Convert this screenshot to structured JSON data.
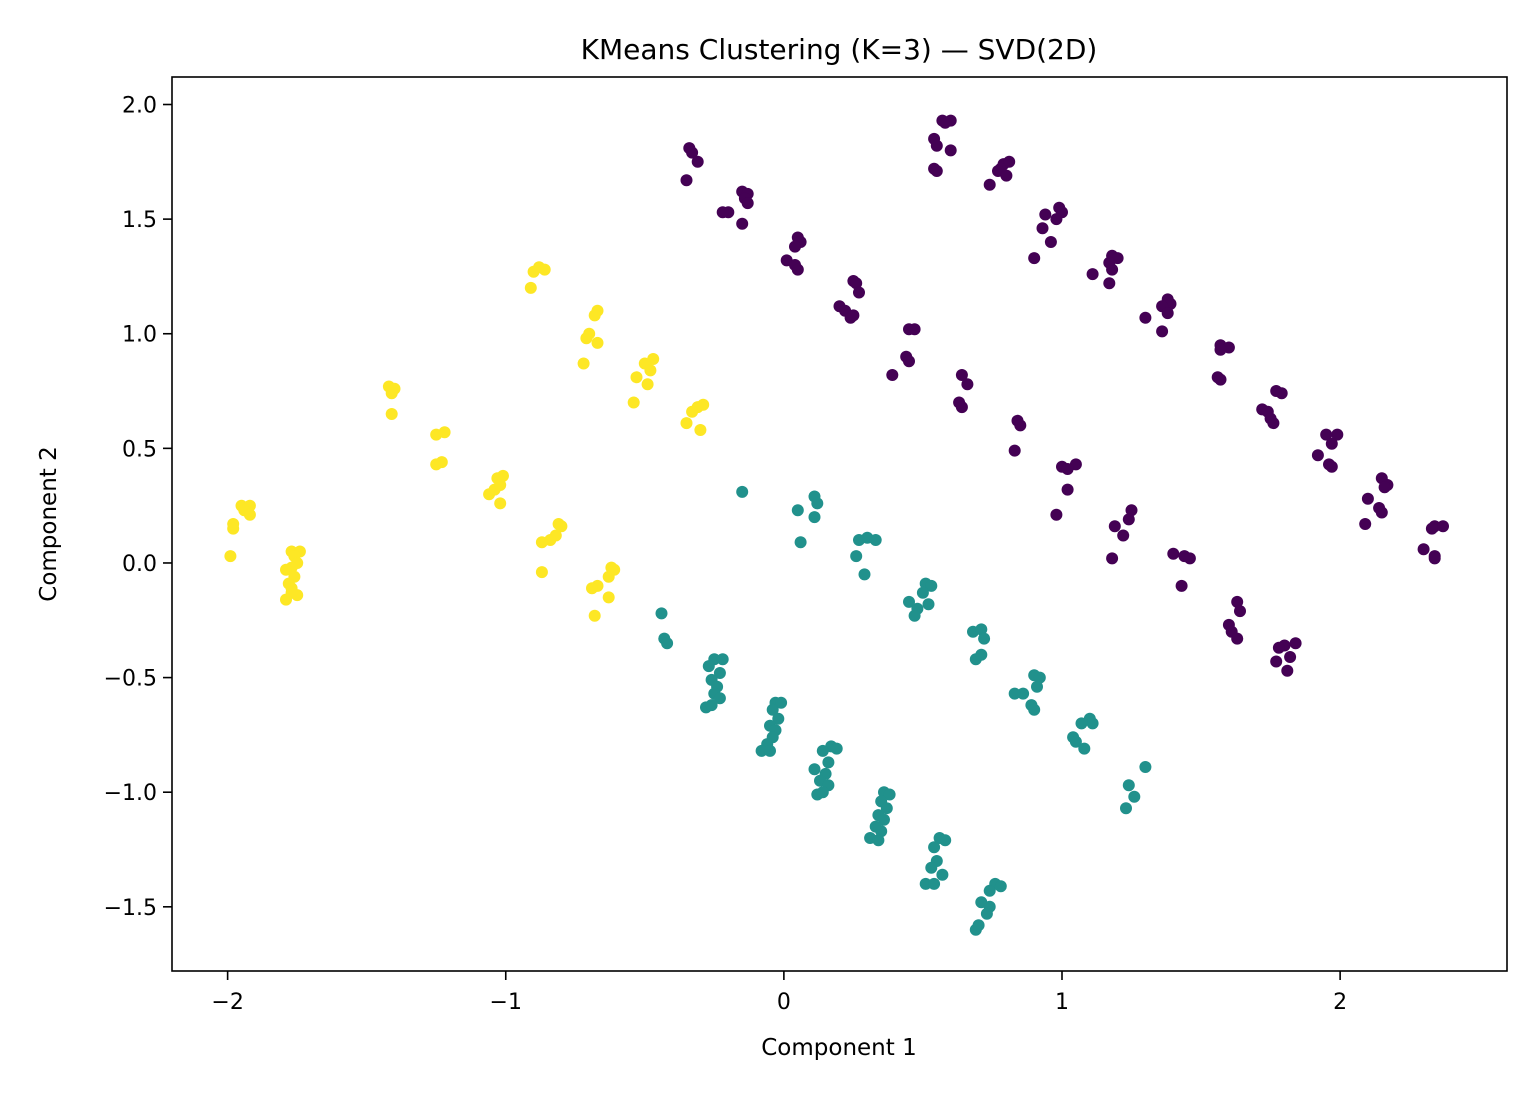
{
  "chart_data": {
    "type": "scatter",
    "title": "KMeans Clustering (K=3) — SVD(2D)",
    "xlabel": "Component 1",
    "ylabel": "Component 2",
    "xlim": [
      -2.2,
      2.6
    ],
    "ylim": [
      -1.78,
      2.12
    ],
    "xticks": [
      -2,
      -1,
      0,
      1,
      2
    ],
    "xtick_labels": [
      "−2",
      "−1",
      "0",
      "1",
      "2"
    ],
    "yticks": [
      -1.5,
      -1.0,
      -0.5,
      0.0,
      0.5,
      1.0,
      1.5,
      2.0
    ],
    "ytick_labels": [
      "−1.5",
      "−1.0",
      "−0.5",
      "0.0",
      "0.5",
      "1.0",
      "1.5",
      "2.0"
    ],
    "grid": false,
    "legend": "none",
    "colors": {
      "cluster_0": "#440154",
      "cluster_1": "#21918c",
      "cluster_2": "#fde725"
    },
    "series": [
      {
        "cluster": 0,
        "color": "#440154",
        "points": [
          [
            -0.34,
            1.81
          ],
          [
            -0.33,
            1.79
          ],
          [
            -0.31,
            1.75
          ],
          [
            -0.35,
            1.67
          ],
          [
            -0.15,
            1.62
          ],
          [
            -0.13,
            1.61
          ],
          [
            -0.14,
            1.59
          ],
          [
            -0.2,
            1.53
          ],
          [
            -0.22,
            1.53
          ],
          [
            -0.13,
            1.57
          ],
          [
            -0.15,
            1.48
          ],
          [
            0.05,
            1.42
          ],
          [
            0.06,
            1.4
          ],
          [
            0.04,
            1.38
          ],
          [
            0.01,
            1.32
          ],
          [
            0.04,
            1.3
          ],
          [
            0.05,
            1.28
          ],
          [
            0.25,
            1.23
          ],
          [
            0.26,
            1.22
          ],
          [
            0.27,
            1.18
          ],
          [
            0.2,
            1.12
          ],
          [
            0.22,
            1.1
          ],
          [
            0.24,
            1.07
          ],
          [
            0.25,
            1.08
          ],
          [
            0.45,
            1.02
          ],
          [
            0.47,
            1.02
          ],
          [
            0.44,
            0.9
          ],
          [
            0.45,
            0.88
          ],
          [
            0.39,
            0.82
          ],
          [
            0.64,
            0.82
          ],
          [
            0.66,
            0.78
          ],
          [
            0.63,
            0.7
          ],
          [
            0.64,
            0.68
          ],
          [
            0.84,
            0.62
          ],
          [
            0.85,
            0.6
          ],
          [
            0.83,
            0.49
          ],
          [
            1.0,
            0.42
          ],
          [
            1.05,
            0.43
          ],
          [
            1.02,
            0.41
          ],
          [
            1.02,
            0.32
          ],
          [
            0.98,
            0.21
          ],
          [
            1.25,
            0.23
          ],
          [
            1.24,
            0.19
          ],
          [
            1.19,
            0.16
          ],
          [
            1.22,
            0.12
          ],
          [
            1.18,
            0.02
          ],
          [
            1.4,
            0.04
          ],
          [
            1.44,
            0.03
          ],
          [
            1.46,
            0.02
          ],
          [
            1.43,
            -0.1
          ],
          [
            1.63,
            -0.17
          ],
          [
            1.64,
            -0.21
          ],
          [
            1.6,
            -0.27
          ],
          [
            1.61,
            -0.3
          ],
          [
            1.63,
            -0.33
          ],
          [
            1.8,
            -0.36
          ],
          [
            1.84,
            -0.35
          ],
          [
            1.78,
            -0.37
          ],
          [
            1.82,
            -0.41
          ],
          [
            1.77,
            -0.43
          ],
          [
            1.81,
            -0.47
          ],
          [
            0.57,
            1.93
          ],
          [
            0.6,
            1.93
          ],
          [
            0.58,
            1.92
          ],
          [
            0.54,
            1.85
          ],
          [
            0.55,
            1.82
          ],
          [
            0.6,
            1.8
          ],
          [
            0.54,
            1.72
          ],
          [
            0.55,
            1.71
          ],
          [
            0.79,
            1.74
          ],
          [
            0.81,
            1.75
          ],
          [
            0.78,
            1.72
          ],
          [
            0.77,
            1.71
          ],
          [
            0.8,
            1.69
          ],
          [
            0.74,
            1.65
          ],
          [
            0.99,
            1.55
          ],
          [
            1.0,
            1.53
          ],
          [
            0.94,
            1.52
          ],
          [
            0.98,
            1.5
          ],
          [
            0.93,
            1.46
          ],
          [
            0.96,
            1.4
          ],
          [
            0.9,
            1.33
          ],
          [
            1.18,
            1.34
          ],
          [
            1.2,
            1.33
          ],
          [
            1.17,
            1.31
          ],
          [
            1.18,
            1.28
          ],
          [
            1.11,
            1.26
          ],
          [
            1.17,
            1.22
          ],
          [
            1.38,
            1.15
          ],
          [
            1.39,
            1.13
          ],
          [
            1.36,
            1.12
          ],
          [
            1.38,
            1.09
          ],
          [
            1.3,
            1.07
          ],
          [
            1.36,
            1.01
          ],
          [
            1.57,
            0.95
          ],
          [
            1.6,
            0.94
          ],
          [
            1.57,
            0.93
          ],
          [
            1.56,
            0.81
          ],
          [
            1.57,
            0.8
          ],
          [
            1.77,
            0.75
          ],
          [
            1.79,
            0.74
          ],
          [
            1.72,
            0.67
          ],
          [
            1.74,
            0.66
          ],
          [
            1.76,
            0.61
          ],
          [
            1.75,
            0.63
          ],
          [
            1.95,
            0.56
          ],
          [
            1.99,
            0.56
          ],
          [
            1.97,
            0.52
          ],
          [
            1.92,
            0.47
          ],
          [
            1.96,
            0.43
          ],
          [
            1.97,
            0.42
          ],
          [
            2.15,
            0.37
          ],
          [
            2.17,
            0.34
          ],
          [
            2.16,
            0.33
          ],
          [
            2.1,
            0.28
          ],
          [
            2.14,
            0.24
          ],
          [
            2.15,
            0.22
          ],
          [
            2.09,
            0.17
          ],
          [
            2.34,
            0.16
          ],
          [
            2.37,
            0.16
          ],
          [
            2.33,
            0.15
          ],
          [
            2.3,
            0.06
          ],
          [
            2.34,
            0.03
          ],
          [
            2.34,
            0.02
          ]
        ]
      },
      {
        "cluster": 1,
        "color": "#21918c",
        "points": [
          [
            -0.15,
            0.31
          ],
          [
            0.11,
            0.29
          ],
          [
            0.12,
            0.26
          ],
          [
            0.05,
            0.23
          ],
          [
            0.11,
            0.2
          ],
          [
            0.06,
            0.09
          ],
          [
            0.3,
            0.11
          ],
          [
            0.33,
            0.1
          ],
          [
            0.27,
            0.1
          ],
          [
            0.26,
            0.03
          ],
          [
            0.29,
            -0.05
          ],
          [
            0.51,
            -0.09
          ],
          [
            0.53,
            -0.1
          ],
          [
            0.5,
            -0.13
          ],
          [
            0.45,
            -0.17
          ],
          [
            0.48,
            -0.2
          ],
          [
            0.47,
            -0.23
          ],
          [
            0.52,
            -0.18
          ],
          [
            0.68,
            -0.3
          ],
          [
            0.71,
            -0.29
          ],
          [
            0.72,
            -0.33
          ],
          [
            0.69,
            -0.42
          ],
          [
            0.71,
            -0.4
          ],
          [
            0.9,
            -0.49
          ],
          [
            0.92,
            -0.5
          ],
          [
            0.91,
            -0.54
          ],
          [
            0.86,
            -0.57
          ],
          [
            0.83,
            -0.57
          ],
          [
            0.89,
            -0.62
          ],
          [
            0.9,
            -0.64
          ],
          [
            1.1,
            -0.68
          ],
          [
            1.11,
            -0.7
          ],
          [
            1.07,
            -0.7
          ],
          [
            1.04,
            -0.76
          ],
          [
            1.05,
            -0.78
          ],
          [
            1.08,
            -0.81
          ],
          [
            1.3,
            -0.89
          ],
          [
            1.24,
            -0.97
          ],
          [
            1.26,
            -1.02
          ],
          [
            1.23,
            -1.07
          ],
          [
            -0.44,
            -0.22
          ],
          [
            -0.43,
            -0.33
          ],
          [
            -0.42,
            -0.35
          ],
          [
            -0.25,
            -0.42
          ],
          [
            -0.22,
            -0.42
          ],
          [
            -0.27,
            -0.45
          ],
          [
            -0.23,
            -0.48
          ],
          [
            -0.26,
            -0.51
          ],
          [
            -0.24,
            -0.54
          ],
          [
            -0.25,
            -0.57
          ],
          [
            -0.23,
            -0.59
          ],
          [
            -0.28,
            -0.63
          ],
          [
            -0.26,
            -0.62
          ],
          [
            -0.03,
            -0.61
          ],
          [
            -0.01,
            -0.61
          ],
          [
            -0.04,
            -0.64
          ],
          [
            -0.02,
            -0.68
          ],
          [
            -0.05,
            -0.71
          ],
          [
            -0.03,
            -0.73
          ],
          [
            -0.04,
            -0.76
          ],
          [
            -0.06,
            -0.79
          ],
          [
            -0.08,
            -0.82
          ],
          [
            -0.05,
            -0.82
          ],
          [
            0.17,
            -0.8
          ],
          [
            0.19,
            -0.81
          ],
          [
            0.14,
            -0.82
          ],
          [
            0.16,
            -0.87
          ],
          [
            0.11,
            -0.9
          ],
          [
            0.15,
            -0.92
          ],
          [
            0.13,
            -0.95
          ],
          [
            0.16,
            -0.97
          ],
          [
            0.12,
            -1.01
          ],
          [
            0.14,
            -1.0
          ],
          [
            0.36,
            -1.0
          ],
          [
            0.38,
            -1.01
          ],
          [
            0.35,
            -1.04
          ],
          [
            0.37,
            -1.07
          ],
          [
            0.34,
            -1.1
          ],
          [
            0.36,
            -1.12
          ],
          [
            0.33,
            -1.15
          ],
          [
            0.35,
            -1.17
          ],
          [
            0.31,
            -1.2
          ],
          [
            0.34,
            -1.21
          ],
          [
            0.56,
            -1.2
          ],
          [
            0.58,
            -1.21
          ],
          [
            0.54,
            -1.24
          ],
          [
            0.55,
            -1.3
          ],
          [
            0.53,
            -1.33
          ],
          [
            0.57,
            -1.36
          ],
          [
            0.51,
            -1.4
          ],
          [
            0.54,
            -1.4
          ],
          [
            0.76,
            -1.4
          ],
          [
            0.78,
            -1.41
          ],
          [
            0.74,
            -1.43
          ],
          [
            0.71,
            -1.48
          ],
          [
            0.74,
            -1.5
          ],
          [
            0.73,
            -1.53
          ],
          [
            0.69,
            -1.6
          ],
          [
            0.7,
            -1.58
          ]
        ]
      },
      {
        "cluster": 2,
        "color": "#fde725",
        "points": [
          [
            -0.88,
            1.29
          ],
          [
            -0.86,
            1.28
          ],
          [
            -0.9,
            1.27
          ],
          [
            -0.91,
            1.2
          ],
          [
            -0.67,
            1.1
          ],
          [
            -0.68,
            1.08
          ],
          [
            -0.7,
            1.0
          ],
          [
            -0.71,
            0.98
          ],
          [
            -0.67,
            0.96
          ],
          [
            -0.72,
            0.87
          ],
          [
            -0.47,
            0.89
          ],
          [
            -0.5,
            0.87
          ],
          [
            -0.48,
            0.84
          ],
          [
            -0.53,
            0.81
          ],
          [
            -0.49,
            0.78
          ],
          [
            -0.54,
            0.7
          ],
          [
            -0.29,
            0.69
          ],
          [
            -0.31,
            0.68
          ],
          [
            -0.33,
            0.66
          ],
          [
            -0.35,
            0.61
          ],
          [
            -0.3,
            0.58
          ],
          [
            -1.42,
            0.77
          ],
          [
            -1.4,
            0.76
          ],
          [
            -1.41,
            0.74
          ],
          [
            -1.41,
            0.65
          ],
          [
            -1.22,
            0.57
          ],
          [
            -1.25,
            0.56
          ],
          [
            -1.23,
            0.44
          ],
          [
            -1.25,
            0.43
          ],
          [
            -1.01,
            0.38
          ],
          [
            -1.03,
            0.37
          ],
          [
            -1.04,
            0.32
          ],
          [
            -1.02,
            0.34
          ],
          [
            -1.06,
            0.3
          ],
          [
            -1.02,
            0.26
          ],
          [
            -0.81,
            0.17
          ],
          [
            -0.8,
            0.16
          ],
          [
            -0.82,
            0.12
          ],
          [
            -0.84,
            0.1
          ],
          [
            -0.87,
            0.09
          ],
          [
            -0.87,
            -0.04
          ],
          [
            -0.62,
            -0.02
          ],
          [
            -0.61,
            -0.03
          ],
          [
            -0.63,
            -0.06
          ],
          [
            -0.67,
            -0.1
          ],
          [
            -0.69,
            -0.11
          ],
          [
            -0.63,
            -0.15
          ],
          [
            -0.68,
            -0.23
          ],
          [
            -1.95,
            0.25
          ],
          [
            -1.92,
            0.25
          ],
          [
            -1.94,
            0.23
          ],
          [
            -1.92,
            0.21
          ],
          [
            -1.98,
            0.17
          ],
          [
            -1.98,
            0.15
          ],
          [
            -1.99,
            0.03
          ],
          [
            -1.77,
            0.05
          ],
          [
            -1.74,
            0.05
          ],
          [
            -1.76,
            0.03
          ],
          [
            -1.75,
            0.0
          ],
          [
            -1.77,
            -0.02
          ],
          [
            -1.79,
            -0.03
          ],
          [
            -1.76,
            -0.06
          ],
          [
            -1.78,
            -0.09
          ],
          [
            -1.77,
            -0.11
          ],
          [
            -1.75,
            -0.14
          ],
          [
            -1.79,
            -0.16
          ],
          [
            -1.77,
            -0.13
          ]
        ]
      }
    ]
  }
}
